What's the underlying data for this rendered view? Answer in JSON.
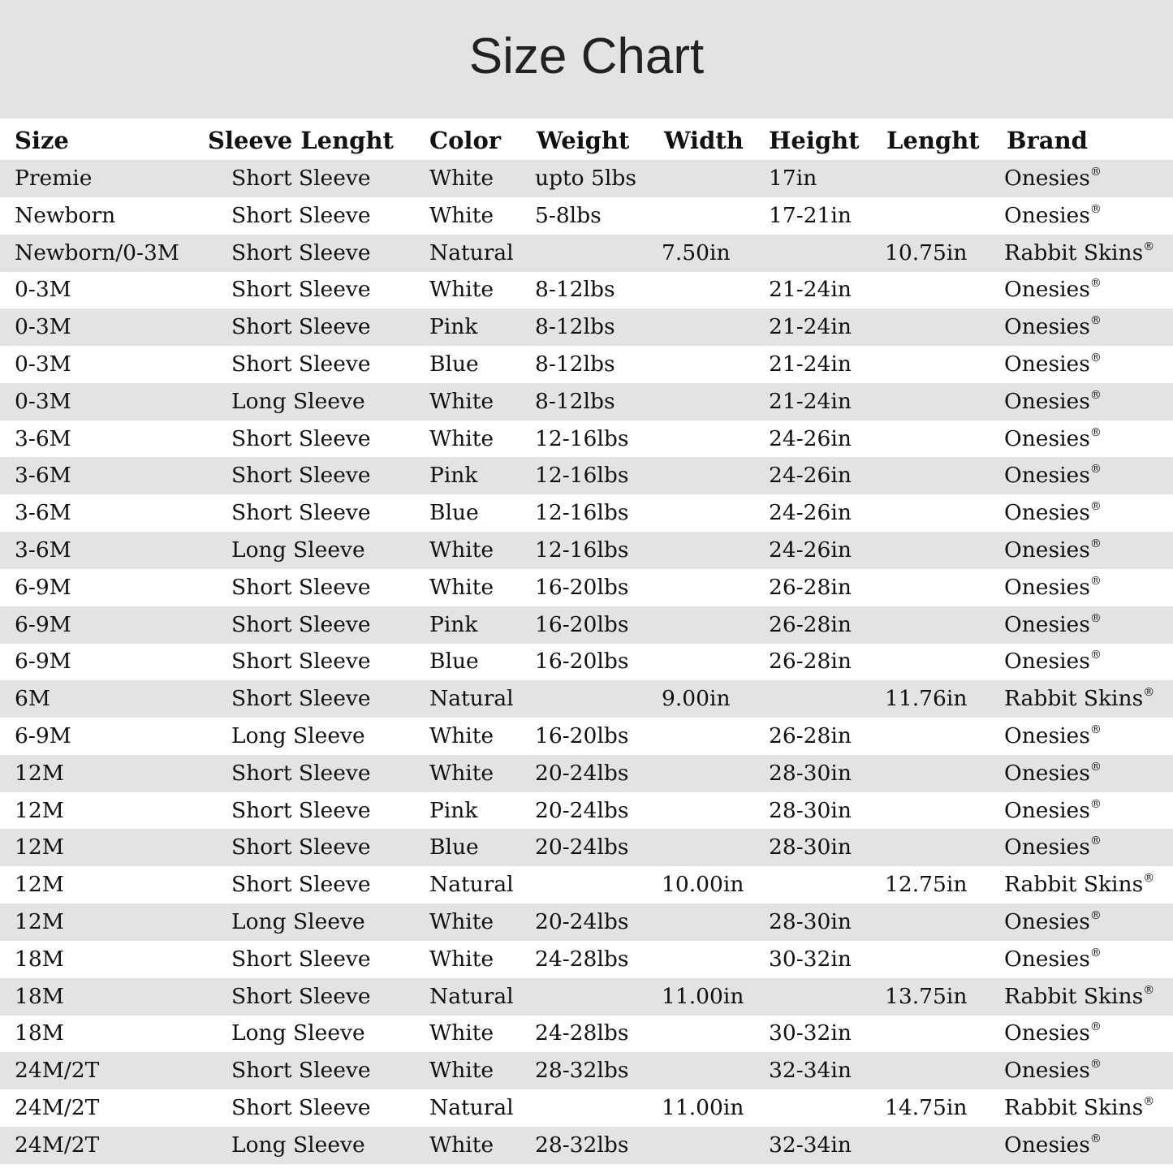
{
  "title": "Size Chart",
  "colors": {
    "band_gray": "#e3e3e3",
    "text": "#111111"
  },
  "headers": [
    "Size",
    "Sleeve Lenght",
    "Color",
    "Weight",
    "Width",
    "Height",
    "Lenght",
    "Brand"
  ],
  "rows": [
    [
      "Premie",
      "Short Sleeve",
      "White",
      "upto 5lbs",
      "",
      "17in",
      "",
      "Onesies®"
    ],
    [
      "Newborn",
      "Short Sleeve",
      "White",
      "5-8lbs",
      "",
      "17-21in",
      "",
      "Onesies®"
    ],
    [
      "Newborn/0-3M",
      "Short Sleeve",
      "Natural",
      "",
      "7.50in",
      "",
      "10.75in",
      "Rabbit Skins®"
    ],
    [
      "0-3M",
      "Short Sleeve",
      "White",
      "8-12lbs",
      "",
      "21-24in",
      "",
      "Onesies®"
    ],
    [
      "0-3M",
      "Short Sleeve",
      "Pink",
      "8-12lbs",
      "",
      "21-24in",
      "",
      "Onesies®"
    ],
    [
      "0-3M",
      "Short Sleeve",
      "Blue",
      "8-12lbs",
      "",
      "21-24in",
      "",
      "Onesies®"
    ],
    [
      "0-3M",
      "Long Sleeve",
      "White",
      "8-12lbs",
      "",
      "21-24in",
      "",
      "Onesies®"
    ],
    [
      "3-6M",
      "Short Sleeve",
      "White",
      "12-16lbs",
      "",
      "24-26in",
      "",
      "Onesies®"
    ],
    [
      "3-6M",
      "Short Sleeve",
      "Pink",
      "12-16lbs",
      "",
      "24-26in",
      "",
      "Onesies®"
    ],
    [
      "3-6M",
      "Short Sleeve",
      "Blue",
      "12-16lbs",
      "",
      "24-26in",
      "",
      "Onesies®"
    ],
    [
      "3-6M",
      "Long Sleeve",
      "White",
      "12-16lbs",
      "",
      "24-26in",
      "",
      "Onesies®"
    ],
    [
      "6-9M",
      "Short Sleeve",
      "White",
      "16-20lbs",
      "",
      "26-28in",
      "",
      "Onesies®"
    ],
    [
      "6-9M",
      "Short Sleeve",
      "Pink",
      "16-20lbs",
      "",
      "26-28in",
      "",
      "Onesies®"
    ],
    [
      "6-9M",
      "Short Sleeve",
      "Blue",
      "16-20lbs",
      "",
      "26-28in",
      "",
      "Onesies®"
    ],
    [
      "6M",
      "Short Sleeve",
      "Natural",
      "",
      "9.00in",
      "",
      "11.76in",
      "Rabbit Skins®"
    ],
    [
      "6-9M",
      "Long Sleeve",
      "White",
      "16-20lbs",
      "",
      "26-28in",
      "",
      "Onesies®"
    ],
    [
      "12M",
      "Short Sleeve",
      "White",
      "20-24lbs",
      "",
      "28-30in",
      "",
      "Onesies®"
    ],
    [
      "12M",
      "Short Sleeve",
      "Pink",
      "20-24lbs",
      "",
      "28-30in",
      "",
      "Onesies®"
    ],
    [
      "12M",
      "Short Sleeve",
      "Blue",
      "20-24lbs",
      "",
      "28-30in",
      "",
      "Onesies®"
    ],
    [
      "12M",
      "Short Sleeve",
      "Natural",
      "",
      "10.00in",
      "",
      "12.75in",
      "Rabbit Skins®"
    ],
    [
      "12M",
      "Long Sleeve",
      "White",
      "20-24lbs",
      "",
      "28-30in",
      "",
      "Onesies®"
    ],
    [
      "18M",
      "Short Sleeve",
      "White",
      "24-28lbs",
      "",
      "30-32in",
      "",
      "Onesies®"
    ],
    [
      "18M",
      "Short Sleeve",
      "Natural",
      "",
      "11.00in",
      "",
      "13.75in",
      "Rabbit Skins®"
    ],
    [
      "18M",
      "Long Sleeve",
      "White",
      "24-28lbs",
      "",
      "30-32in",
      "",
      "Onesies®"
    ],
    [
      "24M/2T",
      "Short Sleeve",
      "White",
      "28-32lbs",
      "",
      "32-34in",
      "",
      "Onesies®"
    ],
    [
      "24M/2T",
      "Short Sleeve",
      "Natural",
      "",
      "11.00in",
      "",
      "14.75in",
      "Rabbit Skins®"
    ],
    [
      "24M/2T",
      "Long Sleeve",
      "White",
      "28-32lbs",
      "",
      "32-34in",
      "",
      "Onesies®"
    ]
  ]
}
